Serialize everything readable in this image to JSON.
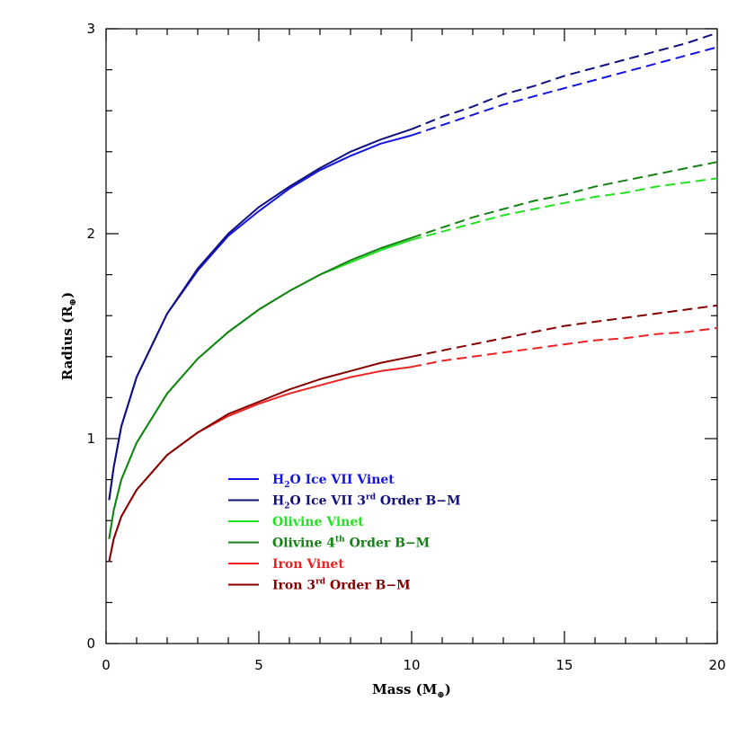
{
  "chart_data": {
    "type": "line",
    "title": "",
    "xlabel": "Mass",
    "xlabel_unit": "M",
    "ylabel": "Radius",
    "ylabel_unit": "R",
    "unit_symbol": "⊕",
    "xlim": [
      0,
      20
    ],
    "ylim": [
      0,
      3
    ],
    "x_ticks": [
      0,
      5,
      10,
      15,
      20
    ],
    "y_ticks": [
      0,
      1,
      2,
      3
    ],
    "grid": false,
    "legend_position": "lower-left",
    "solid_until_x": 10,
    "series": [
      {
        "id": "h2o-vinet",
        "name": "H2O Ice VII Vinet",
        "label_parts": [
          [
            "H",
            ""
          ],
          [
            "2",
            "sub"
          ],
          [
            "O Ice VII Vinet",
            ""
          ]
        ],
        "color": "#1515e0",
        "points": [
          [
            0.1,
            0.7
          ],
          [
            0.25,
            0.86
          ],
          [
            0.5,
            1.06
          ],
          [
            1,
            1.3
          ],
          [
            2,
            1.61
          ],
          [
            3,
            1.82
          ],
          [
            4,
            1.99
          ],
          [
            5,
            2.11
          ],
          [
            6,
            2.22
          ],
          [
            7,
            2.31
          ],
          [
            8,
            2.38
          ],
          [
            9,
            2.44
          ],
          [
            10,
            2.48
          ],
          [
            11,
            2.53
          ],
          [
            12,
            2.58
          ],
          [
            13,
            2.63
          ],
          [
            14,
            2.67
          ],
          [
            15,
            2.71
          ],
          [
            16,
            2.75
          ],
          [
            17,
            2.79
          ],
          [
            18,
            2.83
          ],
          [
            19,
            2.87
          ],
          [
            20,
            2.91
          ]
        ]
      },
      {
        "id": "h2o-bm3",
        "name": "H2O Ice VII 3rd Order B-M",
        "label_parts": [
          [
            "H",
            ""
          ],
          [
            "2",
            "sub"
          ],
          [
            "O Ice VII 3",
            ""
          ],
          [
            "rd",
            "sup"
          ],
          [
            " Order B−M",
            ""
          ]
        ],
        "color": "#101080",
        "points": [
          [
            0.1,
            0.7
          ],
          [
            0.25,
            0.86
          ],
          [
            0.5,
            1.06
          ],
          [
            1,
            1.3
          ],
          [
            2,
            1.61
          ],
          [
            3,
            1.83
          ],
          [
            4,
            2.0
          ],
          [
            5,
            2.13
          ],
          [
            6,
            2.23
          ],
          [
            7,
            2.32
          ],
          [
            8,
            2.4
          ],
          [
            9,
            2.46
          ],
          [
            10,
            2.51
          ],
          [
            11,
            2.57
          ],
          [
            12,
            2.62
          ],
          [
            13,
            2.68
          ],
          [
            14,
            2.72
          ],
          [
            15,
            2.77
          ],
          [
            16,
            2.81
          ],
          [
            17,
            2.85
          ],
          [
            18,
            2.89
          ],
          [
            19,
            2.93
          ],
          [
            20,
            2.98
          ]
        ]
      },
      {
        "id": "olivine-vinet",
        "name": "Olivine Vinet",
        "label_parts": [
          [
            "Olivine Vinet",
            ""
          ]
        ],
        "color": "#22e222",
        "points": [
          [
            0.1,
            0.51
          ],
          [
            0.25,
            0.65
          ],
          [
            0.5,
            0.8
          ],
          [
            1,
            0.98
          ],
          [
            2,
            1.22
          ],
          [
            3,
            1.39
          ],
          [
            4,
            1.52
          ],
          [
            5,
            1.63
          ],
          [
            6,
            1.72
          ],
          [
            7,
            1.8
          ],
          [
            8,
            1.86
          ],
          [
            9,
            1.92
          ],
          [
            10,
            1.97
          ],
          [
            11,
            2.01
          ],
          [
            12,
            2.05
          ],
          [
            13,
            2.09
          ],
          [
            14,
            2.12
          ],
          [
            15,
            2.15
          ],
          [
            16,
            2.18
          ],
          [
            17,
            2.2
          ],
          [
            18,
            2.23
          ],
          [
            19,
            2.25
          ],
          [
            20,
            2.27
          ]
        ]
      },
      {
        "id": "olivine-bm4",
        "name": "Olivine 4th Order B-M",
        "label_parts": [
          [
            "Olivine 4",
            ""
          ],
          [
            "th",
            "sup"
          ],
          [
            " Order B−M",
            ""
          ]
        ],
        "color": "#148214",
        "points": [
          [
            0.1,
            0.51
          ],
          [
            0.25,
            0.65
          ],
          [
            0.5,
            0.8
          ],
          [
            1,
            0.98
          ],
          [
            2,
            1.22
          ],
          [
            3,
            1.39
          ],
          [
            4,
            1.52
          ],
          [
            5,
            1.63
          ],
          [
            6,
            1.72
          ],
          [
            7,
            1.8
          ],
          [
            8,
            1.87
          ],
          [
            9,
            1.93
          ],
          [
            10,
            1.98
          ],
          [
            11,
            2.03
          ],
          [
            12,
            2.08
          ],
          [
            13,
            2.12
          ],
          [
            14,
            2.16
          ],
          [
            15,
            2.19
          ],
          [
            16,
            2.23
          ],
          [
            17,
            2.26
          ],
          [
            18,
            2.29
          ],
          [
            19,
            2.32
          ],
          [
            20,
            2.35
          ]
        ]
      },
      {
        "id": "iron-vinet",
        "name": "Iron Vinet",
        "label_parts": [
          [
            "Iron Vinet",
            ""
          ]
        ],
        "color": "#ee2222",
        "points": [
          [
            0.1,
            0.4
          ],
          [
            0.25,
            0.51
          ],
          [
            0.5,
            0.62
          ],
          [
            1,
            0.75
          ],
          [
            2,
            0.92
          ],
          [
            3,
            1.03
          ],
          [
            4,
            1.11
          ],
          [
            5,
            1.17
          ],
          [
            6,
            1.22
          ],
          [
            7,
            1.26
          ],
          [
            8,
            1.3
          ],
          [
            9,
            1.33
          ],
          [
            10,
            1.35
          ],
          [
            11,
            1.38
          ],
          [
            12,
            1.4
          ],
          [
            13,
            1.42
          ],
          [
            14,
            1.44
          ],
          [
            15,
            1.46
          ],
          [
            16,
            1.48
          ],
          [
            17,
            1.49
          ],
          [
            18,
            1.51
          ],
          [
            19,
            1.52
          ],
          [
            20,
            1.54
          ]
        ]
      },
      {
        "id": "iron-bm3",
        "name": "Iron 3rd Order B-M",
        "label_parts": [
          [
            "Iron 3",
            ""
          ],
          [
            "rd",
            "sup"
          ],
          [
            " Order B−M",
            ""
          ]
        ],
        "color": "#860000",
        "points": [
          [
            0.1,
            0.4
          ],
          [
            0.25,
            0.51
          ],
          [
            0.5,
            0.62
          ],
          [
            1,
            0.75
          ],
          [
            2,
            0.92
          ],
          [
            3,
            1.03
          ],
          [
            4,
            1.12
          ],
          [
            5,
            1.18
          ],
          [
            6,
            1.24
          ],
          [
            7,
            1.29
          ],
          [
            8,
            1.33
          ],
          [
            9,
            1.37
          ],
          [
            10,
            1.4
          ],
          [
            11,
            1.43
          ],
          [
            12,
            1.46
          ],
          [
            13,
            1.49
          ],
          [
            14,
            1.52
          ],
          [
            15,
            1.55
          ],
          [
            16,
            1.57
          ],
          [
            17,
            1.59
          ],
          [
            18,
            1.61
          ],
          [
            19,
            1.63
          ],
          [
            20,
            1.65
          ]
        ]
      }
    ]
  }
}
